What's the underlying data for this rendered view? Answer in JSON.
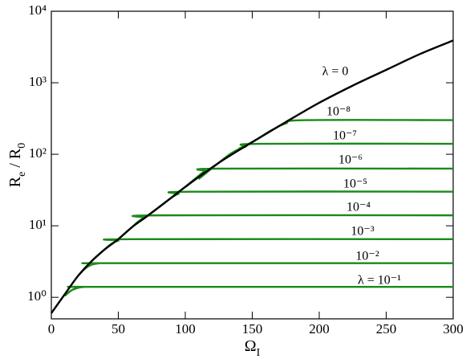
{
  "chart_data": {
    "type": "line",
    "xlabel": [
      "Ω",
      "I"
    ],
    "ylabel": [
      "R",
      "e",
      " / R",
      "0"
    ],
    "xlim": [
      0,
      300
    ],
    "xticks": [
      0,
      50,
      100,
      150,
      200,
      250,
      300
    ],
    "ylim": [
      0.5,
      10000
    ],
    "log_y": true,
    "yticks": [
      {
        "value": 1,
        "label": "10⁰"
      },
      {
        "value": 10,
        "label": "10¹"
      },
      {
        "value": 100,
        "label": "10²"
      },
      {
        "value": 1000,
        "label": "10³"
      },
      {
        "value": 10000,
        "label": "10⁴"
      }
    ],
    "series": [
      {
        "name": "λ = 10⁻¹",
        "color": "#1a8a1a",
        "x": [
          10,
          15,
          20,
          25,
          35,
          300
        ],
        "values": [
          1.05,
          1.25,
          1.36,
          1.4,
          1.4,
          1.4
        ]
      },
      {
        "name": "10⁻²",
        "color": "#1a8a1a",
        "x": [
          20,
          25,
          30,
          35,
          45,
          300
        ],
        "values": [
          2.0,
          2.5,
          2.85,
          2.97,
          3.0,
          3.0
        ]
      },
      {
        "name": "10⁻³",
        "color": "#1a8a1a",
        "x": [
          30,
          40,
          45,
          50,
          60,
          300
        ],
        "values": [
          3.2,
          4.7,
          5.6,
          6.2,
          6.5,
          6.5
        ]
      },
      {
        "name": "10⁻⁴",
        "color": "#1a8a1a",
        "x": [
          50,
          60,
          65,
          70,
          80,
          300
        ],
        "values": [
          6.5,
          9.5,
          11.5,
          13,
          14,
          14
        ]
      },
      {
        "name": "10⁻⁵",
        "color": "#1a8a1a",
        "x": [
          70,
          80,
          90,
          95,
          105,
          300
        ],
        "values": [
          13,
          18,
          25,
          28,
          30,
          30
        ]
      },
      {
        "name": "10⁻⁶",
        "color": "#1a8a1a",
        "x": [
          90,
          100,
          110,
          115,
          125,
          300
        ],
        "values": [
          25,
          35,
          50,
          58,
          63,
          63
        ]
      },
      {
        "name": "10⁻⁷",
        "color": "#1a8a1a",
        "x": [
          110,
          125,
          135,
          145,
          155,
          300
        ],
        "values": [
          45,
          76,
          105,
          128,
          140,
          140
        ]
      },
      {
        "name": "10⁻⁸",
        "color": "#1a8a1a",
        "x": [
          140,
          150,
          165,
          175,
          190,
          300
        ],
        "values": [
          120,
          148,
          220,
          270,
          300,
          300
        ]
      },
      {
        "name": "λ = 0",
        "color": "#000000",
        "x": [
          0,
          10,
          20,
          30,
          40,
          50,
          60,
          70,
          80,
          90,
          100,
          125,
          150,
          175,
          200,
          225,
          250,
          275,
          300
        ],
        "values": [
          0.6,
          1.1,
          2.0,
          3.2,
          4.7,
          6.5,
          9.5,
          13,
          18,
          25,
          35,
          76,
          148,
          282,
          525,
          912,
          1514,
          2512,
          3900
        ]
      }
    ]
  }
}
